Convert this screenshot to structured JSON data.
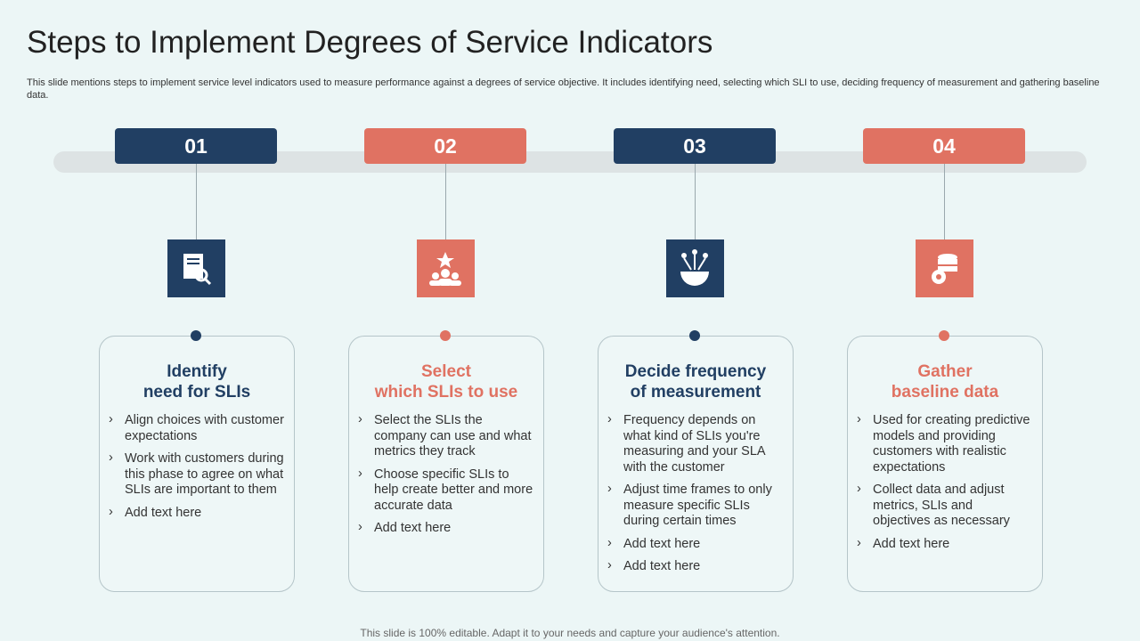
{
  "header": {
    "title": "Steps to Implement Degrees of Service Indicators",
    "subtitle": "This slide mentions steps to implement service level indicators used to measure performance against a degrees of service objective. It includes identifying need, selecting which SLI to use, deciding frequency of measurement and gathering baseline data."
  },
  "steps": [
    {
      "number": "01",
      "title": [
        "Identify",
        "need for SLIs"
      ],
      "bullets": [
        "Align choices with customer expectations",
        "Work with customers during this phase to agree on what SLIs are important to them",
        "Add text here"
      ]
    },
    {
      "number": "02",
      "title": [
        "Select",
        "which SLIs to use"
      ],
      "bullets": [
        "Select the SLIs the company can use and what metrics they track",
        "Choose specific SLIs to help create better and more accurate data",
        "Add text here"
      ]
    },
    {
      "number": "03",
      "title": [
        "Decide frequency",
        "of measurement"
      ],
      "bullets": [
        "Frequency depends on what kind of SLIs you're measuring and your SLA with the customer",
        "Adjust time frames to only measure specific SLIs during certain times",
        "Add text here",
        "Add text here"
      ]
    },
    {
      "number": "04",
      "title": [
        "Gather",
        "baseline data"
      ],
      "bullets": [
        "Used for creating predictive models and providing customers with realistic expectations",
        "Collect data and adjust metrics, SLIs and objectives as necessary",
        "Add text here"
      ]
    }
  ],
  "footer": "This slide is 100% editable. Adapt it to your needs and capture your audience's attention."
}
